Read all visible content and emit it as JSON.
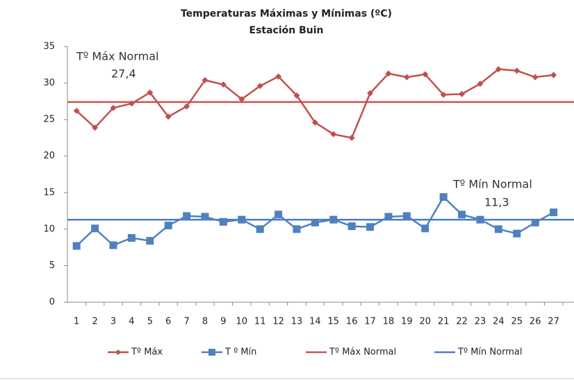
{
  "chart_data": {
    "type": "line",
    "title": "Temperaturas Máximas y Mínimas (ºC)",
    "subtitle": "Estación Buin",
    "categories": [
      1,
      2,
      3,
      4,
      5,
      6,
      7,
      8,
      9,
      10,
      11,
      12,
      13,
      14,
      15,
      16,
      17,
      18,
      19,
      20,
      21,
      22,
      23,
      24,
      25,
      26,
      27
    ],
    "series": [
      {
        "name": "Tº Máx",
        "color": "#c0504d",
        "marker": "diamond",
        "values": [
          26.2,
          23.9,
          26.6,
          27.2,
          28.7,
          25.4,
          26.8,
          30.4,
          29.8,
          27.8,
          29.6,
          30.9,
          28.3,
          24.6,
          23.0,
          22.5,
          28.6,
          31.3,
          30.8,
          31.2,
          28.4,
          28.5,
          29.9,
          31.9,
          31.7,
          30.8,
          31.1
        ]
      },
      {
        "name": "T º Mín",
        "color": "#4f81bd",
        "marker": "square",
        "values": [
          7.7,
          10.1,
          7.8,
          8.8,
          8.4,
          10.5,
          11.8,
          11.7,
          11.0,
          11.3,
          10.0,
          12.0,
          10.0,
          10.9,
          11.3,
          10.4,
          10.3,
          11.7,
          11.8,
          10.1,
          14.4,
          12.0,
          11.3,
          10.0,
          9.4,
          10.9,
          12.3
        ]
      }
    ],
    "reference_lines": [
      {
        "name": "Tº Máx Normal",
        "color": "#d05050",
        "value": 27.4
      },
      {
        "name": "Tº Mín Normal",
        "color": "#4a7cc8",
        "value": 11.3
      }
    ],
    "annotations": [
      "Tº Máx Normal",
      "27,4",
      "Tº Mín Normal",
      "11,3"
    ],
    "ylim": [
      0,
      35
    ],
    "yticks": [
      0,
      5,
      10,
      15,
      20,
      25,
      30,
      35
    ],
    "grid": false
  }
}
